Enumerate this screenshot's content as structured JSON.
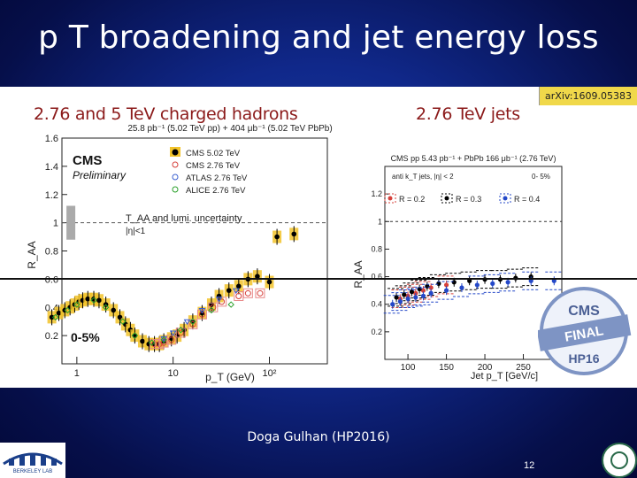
{
  "slide": {
    "title": "p T broadening and jet energy loss",
    "footer": "Doga Gulhan (HP2016)",
    "page_number": "12"
  },
  "figure": {
    "left_heading": "2.76 and 5 TeV charged hadrons",
    "right_heading": "2.76 TeV jets",
    "arxiv_label": "arXiv:1609.05383",
    "stamp": {
      "top": "CMS",
      "band": "FINAL",
      "bottom": "HP16"
    }
  },
  "chart_data": [
    {
      "type": "scatter",
      "title": "25.8 pb⁻¹ (5.02 TeV pp) + 404 μb⁻¹ (5.02 TeV PbPb)",
      "experiment": "CMS",
      "experiment_sub": "Preliminary",
      "centrality": "0-5%",
      "xlabel": "p_T (GeV)",
      "ylabel": "R_AA",
      "xscale": "log",
      "xlim": [
        0.7,
        400
      ],
      "ylim": [
        0,
        1.6
      ],
      "yticks": [
        0.2,
        0.4,
        0.6,
        0.8,
        1,
        1.2,
        1.4,
        1.6
      ],
      "xtick_labels": [
        "1",
        "10",
        "10²"
      ],
      "uncertainty_label": "T_AA and lumi. uncertainty",
      "eta_label": "|η|<1",
      "legend": [
        "CMS 5.02 TeV",
        "CMS 2.76 TeV",
        "ATLAS 2.76 TeV",
        "ALICE 2.76 TeV"
      ],
      "legend_position": "top-right",
      "series": [
        {
          "name": "CMS 5.02 TeV",
          "color": "#000000",
          "x": [
            0.55,
            0.65,
            0.75,
            0.85,
            0.95,
            1.05,
            1.15,
            1.3,
            1.5,
            1.7,
            2.0,
            2.4,
            2.8,
            3.2,
            3.6,
            4.0,
            4.8,
            5.6,
            6.4,
            7.2,
            8.0,
            9.6,
            11,
            13,
            16,
            20,
            25,
            30,
            38,
            48,
            60,
            75,
            100,
            120,
            180
          ],
          "y": [
            0.33,
            0.36,
            0.38,
            0.4,
            0.42,
            0.44,
            0.45,
            0.46,
            0.46,
            0.45,
            0.42,
            0.38,
            0.33,
            0.28,
            0.24,
            0.2,
            0.16,
            0.14,
            0.14,
            0.14,
            0.16,
            0.18,
            0.2,
            0.24,
            0.3,
            0.36,
            0.42,
            0.48,
            0.52,
            0.55,
            0.6,
            0.62,
            0.58,
            0.9,
            0.92
          ]
        },
        {
          "name": "CMS 2.76 TeV",
          "color": "#d6403a",
          "x": [
            6.4,
            7.2,
            8.0,
            9.6,
            12,
            16,
            20,
            26,
            32,
            48,
            60,
            80
          ],
          "y": [
            0.14,
            0.14,
            0.15,
            0.17,
            0.22,
            0.28,
            0.35,
            0.4,
            0.44,
            0.48,
            0.5,
            0.5
          ]
        },
        {
          "name": "ATLAS 2.76 TeV",
          "color": "#3a5fd0",
          "x": [
            8,
            10,
            14,
            20,
            30,
            45
          ],
          "y": [
            0.18,
            0.22,
            0.3,
            0.38,
            0.46,
            0.52
          ]
        },
        {
          "name": "ALICE 2.76 TeV",
          "color": "#2aa02a",
          "x": [
            0.6,
            0.8,
            1.0,
            1.5,
            2.0,
            3.0,
            4.0,
            6.0,
            8.0,
            12,
            16,
            25,
            40
          ],
          "y": [
            0.33,
            0.38,
            0.42,
            0.45,
            0.4,
            0.3,
            0.2,
            0.15,
            0.17,
            0.24,
            0.3,
            0.38,
            0.42
          ]
        }
      ]
    },
    {
      "type": "scatter",
      "title": "CMS  pp 5.43 pb⁻¹ + PbPb 166 μb⁻¹ (2.76 TeV)",
      "selection": "anti k_T jets, |η| < 2",
      "centrality": "0- 5%",
      "xlabel": "Jet p_T [GeV/c]",
      "ylabel": "R_AA",
      "xlim": [
        70,
        300
      ],
      "ylim": [
        0,
        1.4
      ],
      "yticks": [
        0.2,
        0.4,
        0.6,
        0.8,
        1,
        1.2
      ],
      "xticks": [
        100,
        150,
        200,
        250
      ],
      "legend": [
        "R = 0.2",
        "R = 0.3",
        "R = 0.4"
      ],
      "legend_position": "top",
      "series": [
        {
          "name": "R = 0.2",
          "color": "#d6403a",
          "x": [
            90,
            100,
            110,
            120,
            130,
            150
          ],
          "y": [
            0.44,
            0.46,
            0.48,
            0.5,
            0.52,
            0.54
          ]
        },
        {
          "name": "R = 0.3",
          "color": "#000000",
          "x": [
            85,
            95,
            105,
            115,
            125,
            140,
            160,
            180,
            200,
            220,
            240,
            260
          ],
          "y": [
            0.45,
            0.47,
            0.49,
            0.51,
            0.53,
            0.55,
            0.56,
            0.57,
            0.58,
            0.58,
            0.59,
            0.6
          ]
        },
        {
          "name": "R = 0.4",
          "color": "#2448c8",
          "x": [
            80,
            90,
            100,
            110,
            120,
            130,
            150,
            170,
            190,
            210,
            230,
            260,
            290
          ],
          "y": [
            0.4,
            0.42,
            0.44,
            0.45,
            0.46,
            0.48,
            0.5,
            0.52,
            0.54,
            0.55,
            0.56,
            0.57,
            0.57
          ]
        }
      ]
    }
  ],
  "logos": {
    "left": "BERKELEY LAB",
    "right": "university-seal"
  }
}
